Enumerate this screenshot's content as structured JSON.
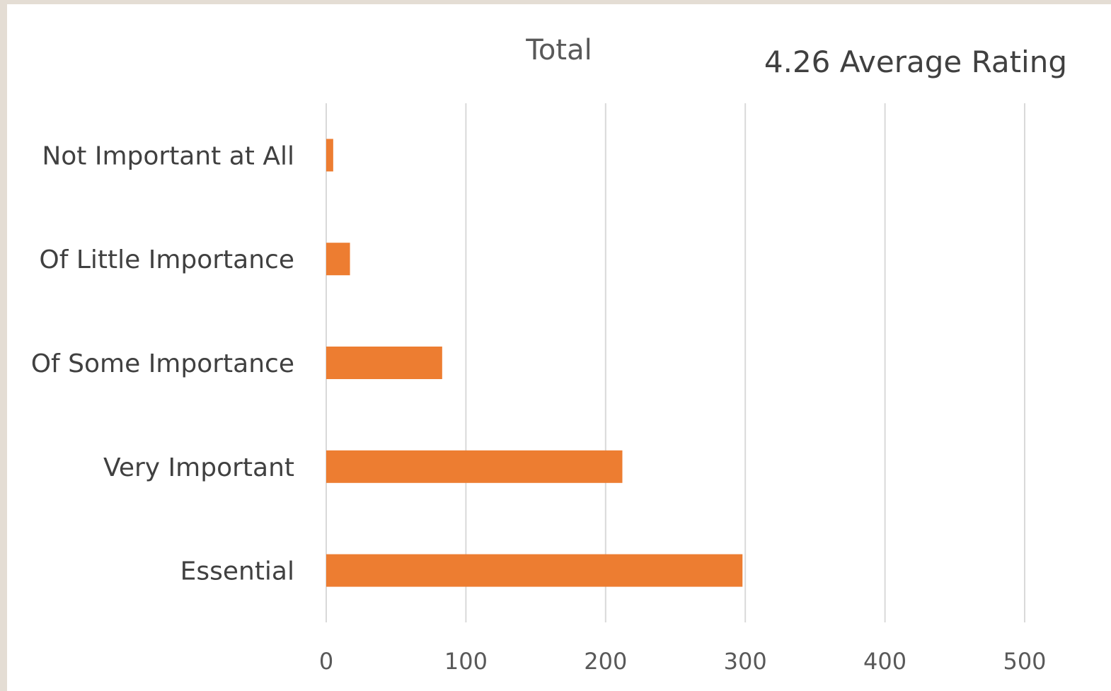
{
  "chart_data": {
    "type": "bar",
    "orientation": "horizontal",
    "title": "Total",
    "annotation": "4.26 Average Rating",
    "categories": [
      "Not Important at All",
      "Of Little Importance",
      "Of Some Importance",
      "Very Important",
      "Essential"
    ],
    "values": [
      5,
      17,
      83,
      212,
      298
    ],
    "xlim": [
      0,
      500
    ],
    "x_ticks": [
      0,
      100,
      200,
      300,
      400,
      500
    ],
    "grid": true,
    "legend": "none",
    "bar_color": "#ed7d31"
  }
}
